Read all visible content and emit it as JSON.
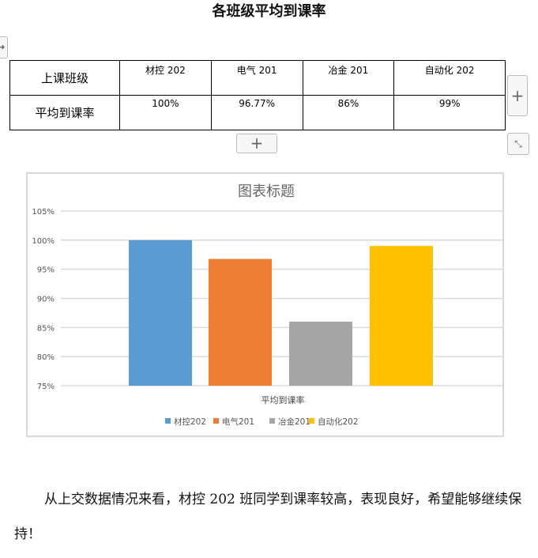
{
  "document": {
    "title": "各班级平均到课率",
    "conclusion": "从上交数据情况来看，材控 202 班同学到课率较高，表现良好，希望能够继续保持！"
  },
  "table": {
    "row_headers": [
      "上课班级",
      "平均到课率"
    ],
    "classes": [
      "材控 202",
      "电气 201",
      "冶金 201",
      "自动化 202"
    ],
    "rates": [
      "100%",
      "96.77%",
      "86%",
      "99%"
    ]
  },
  "controls": {
    "add_row_icon": "plus-icon",
    "add_col_icon": "plus-icon",
    "resize_icon": "resize-icon",
    "move_icon": "arrow-right-icon"
  },
  "chart_data": {
    "type": "bar",
    "title": "图表标题",
    "categories": [
      "平均到课率"
    ],
    "series": [
      {
        "name": "材控202",
        "values": [
          100
        ],
        "color": "#5B9BD5"
      },
      {
        "name": "电气201",
        "values": [
          96.77
        ],
        "color": "#ED7D31"
      },
      {
        "name": "冶金201",
        "values": [
          86
        ],
        "color": "#A5A5A5"
      },
      {
        "name": "自动化202",
        "values": [
          99
        ],
        "color": "#FFC000"
      }
    ],
    "ylim": [
      75,
      105
    ],
    "yticks": [
      "75%",
      "80%",
      "85%",
      "90%",
      "95%",
      "100%",
      "105%"
    ],
    "grid": true,
    "legend": "bottom"
  }
}
